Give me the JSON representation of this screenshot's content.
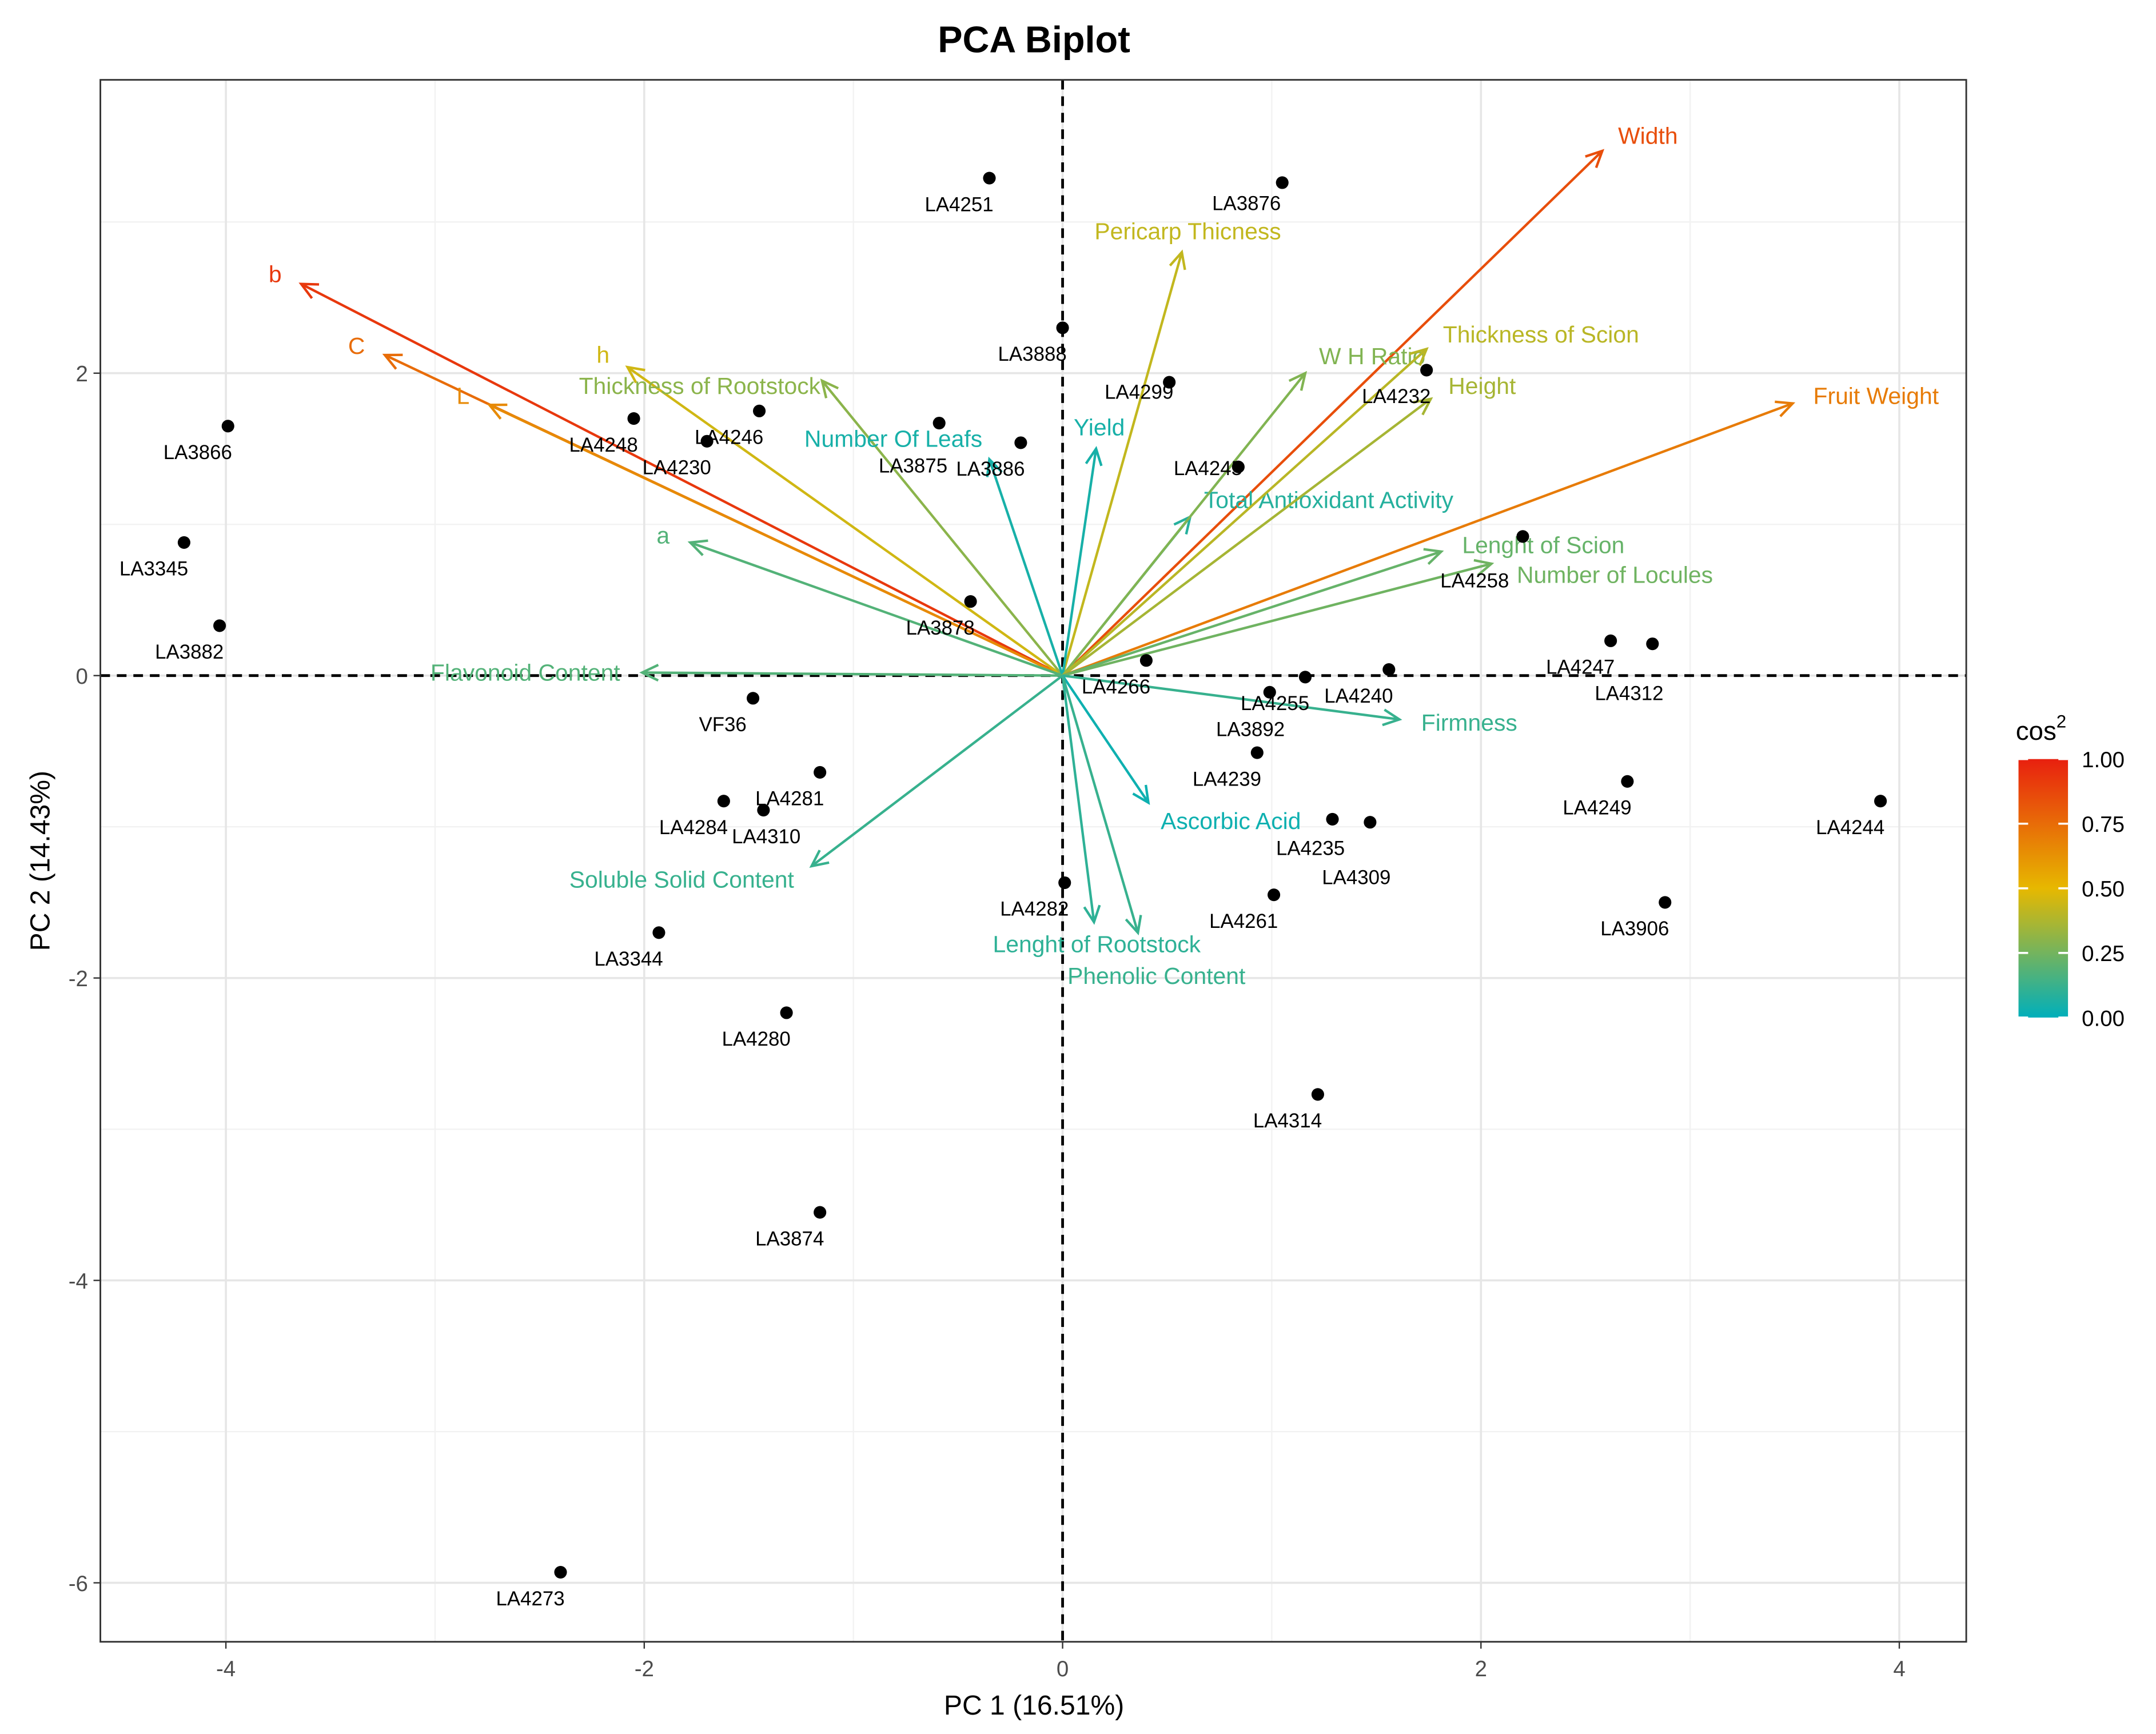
{
  "chart_data": {
    "type": "scatter",
    "title": "PCA Biplot",
    "xlabel": "PC 1 (16.51%)",
    "ylabel": "PC 2 (14.43%)",
    "xlim": [
      -4.6,
      4.32
    ],
    "ylim": [
      -6.39,
      3.94
    ],
    "xticks": [
      -4,
      -2,
      0,
      2,
      4
    ],
    "yticks": [
      -6,
      -4,
      -2,
      0,
      2
    ],
    "grid": true,
    "legend": {
      "title": "cos",
      "title_superscript": "2",
      "position": "right",
      "ticks": [
        "1.00",
        "0.75",
        "0.50",
        "0.25",
        "0.00"
      ],
      "colors": {
        "low": "#00AFBB",
        "mid": "#E7B800",
        "high": "#E8200F"
      }
    },
    "points": [
      {
        "label": "LA3876",
        "x": 1.05,
        "y": 3.26
      },
      {
        "label": "LA4251",
        "x": -0.35,
        "y": 3.29
      },
      {
        "label": "LA3888",
        "x": 0.0,
        "y": 2.3
      },
      {
        "label": "LA4299",
        "x": 0.51,
        "y": 1.94
      },
      {
        "label": "LA4232",
        "x": 1.74,
        "y": 2.02
      },
      {
        "label": "LA4245",
        "x": 0.84,
        "y": 1.38
      },
      {
        "label": "LA4248",
        "x": -2.05,
        "y": 1.7
      },
      {
        "label": "LA4246",
        "x": -1.45,
        "y": 1.75
      },
      {
        "label": "LA3875",
        "x": -0.59,
        "y": 1.67
      },
      {
        "label": "LA4230",
        "x": -1.7,
        "y": 1.55
      },
      {
        "label": "LA3886",
        "x": -0.2,
        "y": 1.54
      },
      {
        "label": "LA3866",
        "x": -3.99,
        "y": 1.65
      },
      {
        "label": "LA3345",
        "x": -4.2,
        "y": 0.88
      },
      {
        "label": "LA3882",
        "x": -4.03,
        "y": 0.33
      },
      {
        "label": "LA3878",
        "x": -0.44,
        "y": 0.49
      },
      {
        "label": "LA4266",
        "x": 0.4,
        "y": 0.1
      },
      {
        "label": "LA4258",
        "x": 2.2,
        "y": 0.92
      },
      {
        "label": "LA4247",
        "x": 2.62,
        "y": 0.23
      },
      {
        "label": "LA4312",
        "x": 2.82,
        "y": 0.21
      },
      {
        "label": "LA4255",
        "x": 1.16,
        "y": -0.01
      },
      {
        "label": "LA4240",
        "x": 1.56,
        "y": 0.04
      },
      {
        "label": "LA3892",
        "x": 0.99,
        "y": -0.11
      },
      {
        "label": "LA4239",
        "x": 0.93,
        "y": -0.51
      },
      {
        "label": "LA4235",
        "x": 1.29,
        "y": -0.95
      },
      {
        "label": "LA4309",
        "x": 1.47,
        "y": -0.97
      },
      {
        "label": "LA4261",
        "x": 1.01,
        "y": -1.45
      },
      {
        "label": "LA4249",
        "x": 2.7,
        "y": -0.7
      },
      {
        "label": "LA4244",
        "x": 3.91,
        "y": -0.83
      },
      {
        "label": "LA3906",
        "x": 2.88,
        "y": -1.5
      },
      {
        "label": "VF36",
        "x": -1.48,
        "y": -0.15
      },
      {
        "label": "LA4281",
        "x": -1.16,
        "y": -0.64
      },
      {
        "label": "LA4284",
        "x": -1.62,
        "y": -0.83
      },
      {
        "label": "LA4310",
        "x": -1.43,
        "y": -0.89
      },
      {
        "label": "LA4282",
        "x": 0.01,
        "y": -1.37
      },
      {
        "label": "LA3344",
        "x": -1.93,
        "y": -1.7
      },
      {
        "label": "LA4280",
        "x": -1.32,
        "y": -2.23
      },
      {
        "label": "LA4314",
        "x": 1.22,
        "y": -2.77
      },
      {
        "label": "LA3874",
        "x": -1.16,
        "y": -3.55
      },
      {
        "label": "LA4273",
        "x": -2.4,
        "y": -5.93
      }
    ],
    "variables": [
      {
        "label": "Width",
        "x": 2.58,
        "y": 3.47,
        "cos2": 0.85
      },
      {
        "label": "Pericarp Thicness",
        "x": 0.57,
        "y": 2.8,
        "cos2": 0.42
      },
      {
        "label": "b",
        "x": -3.64,
        "y": 2.59,
        "cos2": 0.92
      },
      {
        "label": "C",
        "x": -3.24,
        "y": 2.12,
        "cos2": 0.75
      },
      {
        "label": "L",
        "x": -2.74,
        "y": 1.79,
        "cos2": 0.65
      },
      {
        "label": "h",
        "x": -2.08,
        "y": 2.04,
        "cos2": 0.45
      },
      {
        "label": "Thickness of Rootstock",
        "x": -1.15,
        "y": 1.95,
        "cos2": 0.3
      },
      {
        "label": "Number Of Leafs",
        "x": -0.35,
        "y": 1.43,
        "cos2": 0.05
      },
      {
        "label": "Yield",
        "x": 0.16,
        "y": 1.5,
        "cos2": 0.05
      },
      {
        "label": "Total Antioxidant Activity",
        "x": 0.61,
        "y": 1.05,
        "cos2": 0.08
      },
      {
        "label": "W H Ratio",
        "x": 1.16,
        "y": 2.0,
        "cos2": 0.28
      },
      {
        "label": "Thickness of Scion",
        "x": 1.74,
        "y": 2.16,
        "cos2": 0.4
      },
      {
        "label": "Height",
        "x": 1.76,
        "y": 1.83,
        "cos2": 0.36
      },
      {
        "label": "Fruit Weight",
        "x": 3.49,
        "y": 1.8,
        "cos2": 0.7
      },
      {
        "label": "Lenght of Scion",
        "x": 1.81,
        "y": 0.82,
        "cos2": 0.22
      },
      {
        "label": "Number of Locules",
        "x": 2.05,
        "y": 0.74,
        "cos2": 0.24
      },
      {
        "label": "a",
        "x": -1.78,
        "y": 0.88,
        "cos2": 0.18
      },
      {
        "label": "Flavonoid Content",
        "x": -2.01,
        "y": 0.02,
        "cos2": 0.18
      },
      {
        "label": "Firmness",
        "x": 1.61,
        "y": -0.29,
        "cos2": 0.12
      },
      {
        "label": "Ascorbic Acid",
        "x": 0.41,
        "y": -0.84,
        "cos2": 0.03
      },
      {
        "label": "Soluble Solid Content",
        "x": -1.2,
        "y": -1.26,
        "cos2": 0.12
      },
      {
        "label": "Lenght of Rootstock",
        "x": 0.15,
        "y": -1.63,
        "cos2": 0.1
      },
      {
        "label": "Phenolic Content",
        "x": 0.36,
        "y": -1.7,
        "cos2": 0.12
      }
    ]
  }
}
